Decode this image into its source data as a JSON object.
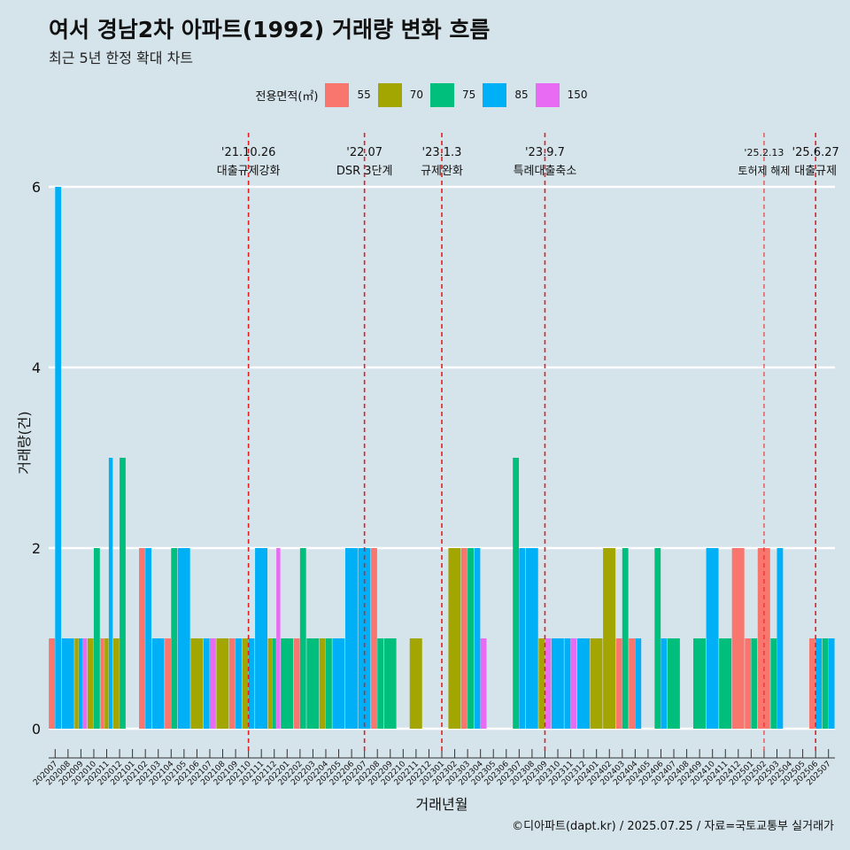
{
  "title": "여서 경남2차 아파트(1992) 거래량 변화 흐름",
  "subtitle": "최근 5년 한정 확대 차트",
  "caption": "©디아파트(dapt.kr) / 2025.07.25 / 자료=국토교통부 실거래가",
  "legend": {
    "title": "전용면적(㎡)",
    "items": [
      {
        "label": "55",
        "color": "#f8766d"
      },
      {
        "label": "70",
        "color": "#a3a500"
      },
      {
        "label": "75",
        "color": "#00bf7d"
      },
      {
        "label": "85",
        "color": "#00b0f6"
      },
      {
        "label": "150",
        "color": "#e76bf3"
      }
    ]
  },
  "chart_data": {
    "type": "bar",
    "xlabel": "거래년월",
    "ylabel": "거래량(건)",
    "ylim": [
      0,
      6
    ],
    "yticks": [
      0,
      2,
      4,
      6
    ],
    "grid": true,
    "legend_position": "top",
    "categories": [
      "202007",
      "202008",
      "202009",
      "202010",
      "202011",
      "202012",
      "202101",
      "202102",
      "202103",
      "202104",
      "202105",
      "202106",
      "202107",
      "202108",
      "202109",
      "202110",
      "202111",
      "202112",
      "202201",
      "202202",
      "202203",
      "202204",
      "202205",
      "202206",
      "202207",
      "202208",
      "202209",
      "202210",
      "202211",
      "202212",
      "202301",
      "202302",
      "202303",
      "202304",
      "202305",
      "202306",
      "202307",
      "202308",
      "202309",
      "202310",
      "202311",
      "202312",
      "202401",
      "202402",
      "202403",
      "202404",
      "202405",
      "202406",
      "202407",
      "202408",
      "202409",
      "202410",
      "202411",
      "202412",
      "202501",
      "202502",
      "202503",
      "202504",
      "202505",
      "202506",
      "202507"
    ],
    "series": [
      {
        "name": "55",
        "color": "#f8766d",
        "values": [
          1,
          0,
          0,
          0,
          1,
          0,
          0,
          2,
          0,
          1,
          0,
          0,
          0,
          0,
          1,
          0,
          0,
          0,
          0,
          1,
          0,
          0,
          0,
          0,
          0,
          2,
          0,
          0,
          0,
          0,
          0,
          0,
          2,
          0,
          0,
          0,
          0,
          0,
          0,
          0,
          0,
          0,
          0,
          0,
          1,
          1,
          0,
          0,
          0,
          0,
          0,
          0,
          0,
          2,
          1,
          2,
          0,
          0,
          0,
          1,
          0
        ]
      },
      {
        "name": "70",
        "color": "#a3a500",
        "values": [
          0,
          0,
          1,
          1,
          1,
          1,
          0,
          0,
          0,
          0,
          0,
          1,
          0,
          1,
          0,
          1,
          0,
          1,
          0,
          0,
          0,
          1,
          0,
          0,
          0,
          0,
          0,
          0,
          1,
          0,
          0,
          2,
          0,
          0,
          0,
          0,
          0,
          0,
          1,
          0,
          0,
          0,
          1,
          2,
          0,
          0,
          0,
          0,
          0,
          0,
          0,
          0,
          0,
          0,
          0,
          0,
          0,
          0,
          0,
          0,
          0
        ]
      },
      {
        "name": "75",
        "color": "#00bf7d",
        "values": [
          0,
          0,
          0,
          2,
          0,
          3,
          0,
          0,
          0,
          2,
          0,
          0,
          0,
          0,
          0,
          0,
          0,
          1,
          1,
          2,
          1,
          1,
          0,
          0,
          0,
          1,
          1,
          0,
          0,
          0,
          0,
          0,
          2,
          0,
          0,
          0,
          3,
          0,
          0,
          0,
          0,
          0,
          0,
          0,
          2,
          0,
          0,
          2,
          1,
          0,
          1,
          0,
          1,
          0,
          1,
          0,
          1,
          0,
          0,
          0,
          1
        ]
      },
      {
        "name": "85",
        "color": "#00b0f6",
        "values": [
          6,
          1,
          1,
          0,
          3,
          0,
          0,
          2,
          1,
          0,
          2,
          0,
          1,
          0,
          1,
          1,
          2,
          0,
          0,
          0,
          0,
          0,
          1,
          2,
          2,
          0,
          0,
          0,
          0,
          0,
          0,
          0,
          0,
          2,
          0,
          0,
          2,
          2,
          0,
          1,
          1,
          1,
          0,
          0,
          0,
          1,
          0,
          1,
          0,
          0,
          0,
          2,
          0,
          0,
          0,
          0,
          2,
          0,
          0,
          1,
          1
        ]
      },
      {
        "name": "150",
        "color": "#e76bf3",
        "values": [
          0,
          0,
          1,
          0,
          0,
          0,
          0,
          0,
          0,
          0,
          0,
          0,
          1,
          0,
          0,
          0,
          0,
          2,
          0,
          0,
          0,
          0,
          0,
          0,
          0,
          0,
          0,
          0,
          0,
          0,
          0,
          0,
          0,
          1,
          0,
          0,
          0,
          0,
          1,
          0,
          1,
          0,
          0,
          0,
          0,
          0,
          0,
          0,
          0,
          0,
          0,
          0,
          0,
          0,
          0,
          0,
          0,
          0,
          0,
          0,
          0
        ]
      }
    ],
    "annotations": [
      {
        "date": "'21.10.26",
        "text": "대출규제강화",
        "at": "202110"
      },
      {
        "date": "'22.07",
        "text": "DSR 3단계",
        "at": "202207"
      },
      {
        "date": "'23.1.3",
        "text": "규제완화",
        "at": "202301"
      },
      {
        "date": "'23.9.7",
        "text": "특례대출축소",
        "at": "202309"
      },
      {
        "date": "'25.2.13",
        "text": "토허제 해제",
        "at": "202502"
      },
      {
        "date": "'25.6.27",
        "text": "대출규제",
        "at": "202506"
      }
    ]
  }
}
